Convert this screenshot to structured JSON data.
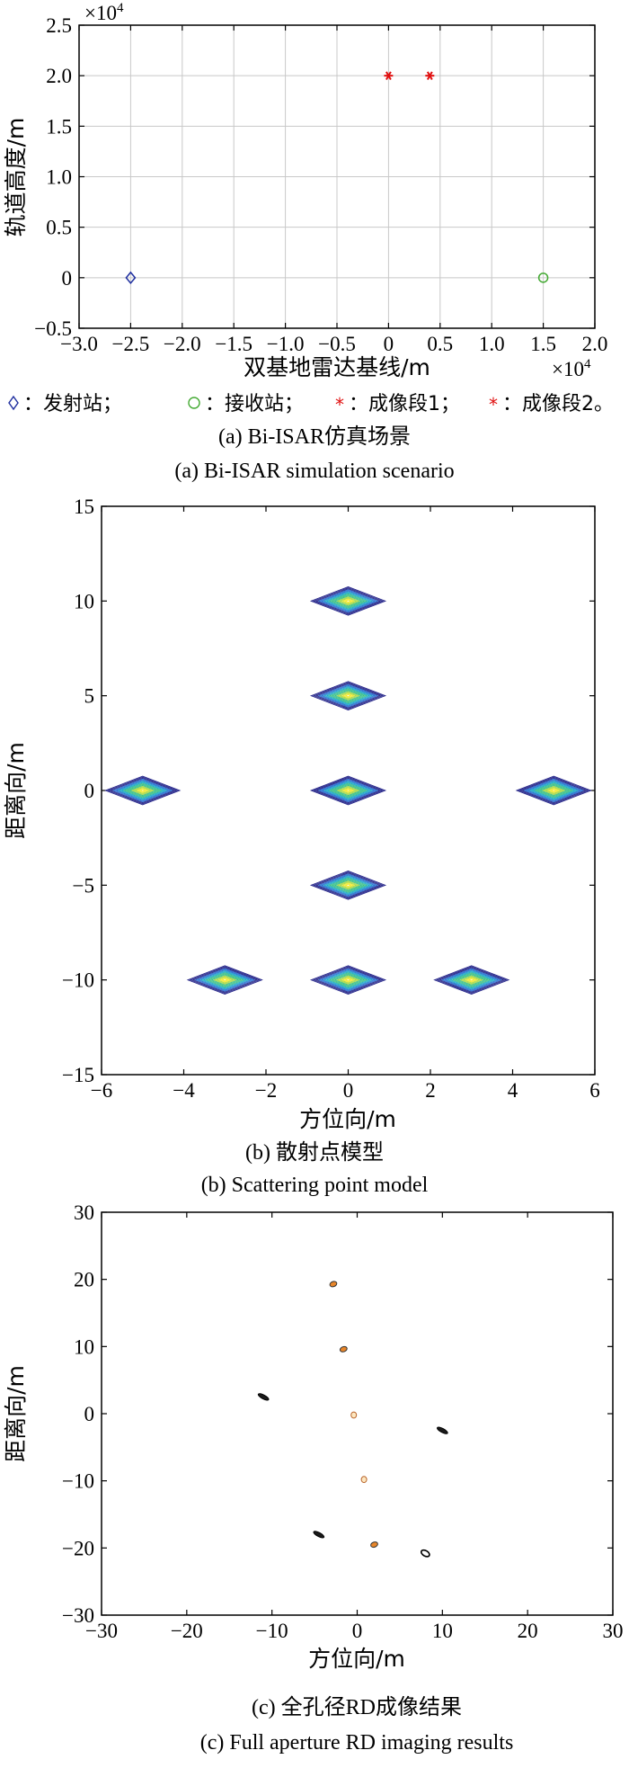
{
  "chart_data": [
    {
      "type": "scatter",
      "xlabel": "双基地雷达基线/m",
      "ylabel": "轨道高度/m",
      "x_exponent": "×10",
      "x_exponent_power": "4",
      "y_exponent": "×10",
      "y_exponent_power": "4",
      "xlim": [
        -3.0,
        2.0
      ],
      "ylim": [
        -0.5,
        2.5
      ],
      "xticks": [
        "−3.0",
        "−2.5",
        "−2.0",
        "−1.5",
        "−1.0",
        "−0.5",
        "0",
        "0.5",
        "1.0",
        "1.5",
        "2.0"
      ],
      "yticks": [
        "2.5",
        "2.0",
        "1.5",
        "1.0",
        "0.5",
        "0",
        "−0.5"
      ],
      "grid": true,
      "series": [
        {
          "marker": "diamond",
          "color": "#1f2f9f",
          "points": [
            [
              -2.5,
              0
            ]
          ]
        },
        {
          "marker": "circle",
          "color": "#44aa33",
          "points": [
            [
              1.5,
              0
            ]
          ]
        },
        {
          "marker": "star",
          "color": "#e01010",
          "points": [
            [
              0,
              2.0
            ],
            [
              0.4,
              2.0
            ]
          ]
        }
      ],
      "legend_items": [
        {
          "marker": "diamond",
          "color": "#1f2f9f",
          "label": "：发射站；"
        },
        {
          "marker": "circle",
          "color": "#44aa33",
          "label": "：接收站；"
        },
        {
          "marker": "star",
          "color": "#e01010",
          "label": "：成像段1；"
        },
        {
          "marker": "star",
          "color": "#e01010",
          "label": "：成像段2。"
        }
      ],
      "caption_cn": "(a) Bi-ISAR仿真场景",
      "caption_en": "(a) Bi-ISAR simulation scenario"
    },
    {
      "type": "contour",
      "xlabel": "方位向/m",
      "ylabel": "距离向/m",
      "xlim": [
        -6,
        6
      ],
      "ylim": [
        -15,
        15
      ],
      "xticks": [
        "−6",
        "−4",
        "−2",
        "0",
        "2",
        "4",
        "6"
      ],
      "yticks": [
        "15",
        "10",
        "5",
        "0",
        "−5",
        "−10",
        "−15"
      ],
      "grid": false,
      "points": [
        [
          0,
          10
        ],
        [
          0,
          5
        ],
        [
          -5,
          0
        ],
        [
          0,
          0
        ],
        [
          5,
          0
        ],
        [
          0,
          -5
        ],
        [
          -3,
          -10
        ],
        [
          0,
          -10
        ],
        [
          3,
          -10
        ]
      ],
      "colors": [
        "#2a2a8c",
        "#2a6fd0",
        "#1fa8c8",
        "#3cc08a",
        "#a8d84a",
        "#f2e832"
      ],
      "caption_cn": "(b) 散射点模型",
      "caption_en": "(b) Scattering point model"
    },
    {
      "type": "contour",
      "xlabel": "方位向/m",
      "ylabel": "距离向/m",
      "xlim": [
        -30,
        30
      ],
      "ylim": [
        -30,
        30
      ],
      "xticks": [
        "−30",
        "−20",
        "−10",
        "0",
        "10",
        "20",
        "30"
      ],
      "yticks": [
        "30",
        "20",
        "10",
        "0",
        "−10",
        "−20",
        "−30"
      ],
      "grid": false,
      "blobs": [
        {
          "x": -2.8,
          "y": 19.3,
          "style": "orange"
        },
        {
          "x": -1.6,
          "y": 9.6,
          "style": "orange"
        },
        {
          "x": -0.4,
          "y": -0.2,
          "style": "light"
        },
        {
          "x": 0.8,
          "y": -9.8,
          "style": "light"
        },
        {
          "x": 2.0,
          "y": -19.5,
          "style": "orange"
        },
        {
          "x": -11.0,
          "y": 2.5,
          "style": "dark"
        },
        {
          "x": 10.0,
          "y": -2.5,
          "style": "dark"
        },
        {
          "x": -4.5,
          "y": -18.0,
          "style": "dark"
        },
        {
          "x": 8.0,
          "y": -20.8,
          "style": "darkring"
        }
      ],
      "caption_cn": "(c) 全孔径RD成像结果",
      "caption_en": "(c) Full aperture RD imaging results"
    }
  ]
}
